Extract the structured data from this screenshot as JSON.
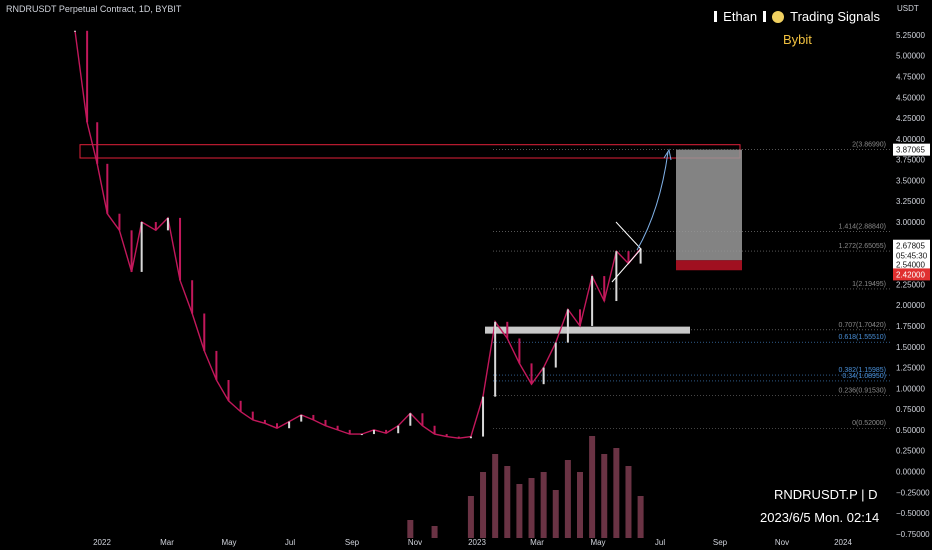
{
  "header": {
    "title": "RNDRUSDT Perpetual Contract, 1D, BYBIT",
    "brand_name": "Ethan",
    "brand_tag": "Trading Signals",
    "exchange": "Bybit",
    "axis_unit": "USDT"
  },
  "footer": {
    "symbol": "RNDRUSDT.P | D",
    "datetime": "2023/6/5 Mon. 02:14"
  },
  "colors": {
    "background": "#000000",
    "up": "#d9d9d9",
    "down": "#c2185b",
    "resistance": "#e0203a",
    "fib_line": "#8a8a8a",
    "fib_blue": "#4a90d9",
    "target_zone": "#9a9a9a",
    "stop_zone": "#a01020",
    "price_tag": "#e03030"
  },
  "chart_data": {
    "type": "line",
    "title": "RNDRUSDT Perpetual Contract, 1D, BYBIT",
    "ylabel": "USDT",
    "ylim": [
      -0.8,
      5.55
    ],
    "y_ticks": [
      "5.25000",
      "5.00000",
      "4.75000",
      "4.50000",
      "4.25000",
      "4.00000",
      "3.75000",
      "3.50000",
      "3.25000",
      "3.00000",
      "2.75000",
      "2.50000",
      "2.25000",
      "2.00000",
      "1.75000",
      "1.50000",
      "1.25000",
      "1.00000",
      "0.75000",
      "0.50000",
      "0.25000",
      "0.00000",
      "−0.25000",
      "−0.50000",
      "−0.75000"
    ],
    "x_ticks": [
      "2022",
      "Mar",
      "May",
      "Jul",
      "Sep",
      "Nov",
      "2023",
      "Mar",
      "May",
      "Jul",
      "Sep",
      "Nov",
      "2024"
    ],
    "series": [
      {
        "values": [
          [
            0,
            5.3
          ],
          [
            6,
            4.2
          ],
          [
            11,
            3.7
          ],
          [
            16,
            3.1
          ],
          [
            22,
            2.9
          ],
          [
            28,
            2.4
          ],
          [
            33,
            3.0
          ],
          [
            40,
            2.9
          ],
          [
            46,
            3.05
          ],
          [
            52,
            2.3
          ],
          [
            58,
            1.9
          ],
          [
            64,
            1.45
          ],
          [
            70,
            1.1
          ],
          [
            76,
            0.85
          ],
          [
            82,
            0.72
          ],
          [
            88,
            0.62
          ],
          [
            94,
            0.58
          ],
          [
            100,
            0.52
          ],
          [
            106,
            0.6
          ],
          [
            112,
            0.68
          ],
          [
            118,
            0.62
          ],
          [
            124,
            0.55
          ],
          [
            130,
            0.5
          ],
          [
            136,
            0.45
          ],
          [
            142,
            0.45
          ],
          [
            148,
            0.5
          ],
          [
            154,
            0.46
          ],
          [
            160,
            0.55
          ],
          [
            166,
            0.7
          ],
          [
            172,
            0.55
          ],
          [
            178,
            0.45
          ],
          [
            184,
            0.42
          ],
          [
            190,
            0.4
          ],
          [
            196,
            0.42
          ],
          [
            202,
            0.9
          ],
          [
            208,
            1.8
          ],
          [
            214,
            1.6
          ],
          [
            220,
            1.3
          ],
          [
            226,
            1.05
          ],
          [
            232,
            1.25
          ],
          [
            238,
            1.55
          ],
          [
            244,
            1.95
          ],
          [
            250,
            1.75
          ],
          [
            256,
            2.35
          ],
          [
            262,
            2.05
          ],
          [
            268,
            2.65
          ],
          [
            274,
            2.5
          ],
          [
            280,
            2.68
          ]
        ]
      }
    ],
    "volume": [
      [
        166,
        0.15
      ],
      [
        178,
        0.1
      ],
      [
        196,
        0.35
      ],
      [
        202,
        0.55
      ],
      [
        208,
        0.7
      ],
      [
        214,
        0.6
      ],
      [
        220,
        0.45
      ],
      [
        226,
        0.5
      ],
      [
        232,
        0.55
      ],
      [
        238,
        0.4
      ],
      [
        244,
        0.65
      ],
      [
        250,
        0.55
      ],
      [
        256,
        0.85
      ],
      [
        262,
        0.7
      ],
      [
        268,
        0.75
      ],
      [
        274,
        0.6
      ],
      [
        280,
        0.35
      ]
    ],
    "fib_levels": [
      {
        "ratio": "2",
        "price": 3.8699,
        "label": "2(3.86990)"
      },
      {
        "ratio": "1.414",
        "price": 2.8884,
        "label": "1.414(2.88840)"
      },
      {
        "ratio": "1.272",
        "price": 2.65055,
        "label": "1.272(2.65055)"
      },
      {
        "ratio": "1",
        "price": 2.19495,
        "label": "1(2.19495)"
      },
      {
        "ratio": "0.707",
        "price": 1.7042,
        "label": "0.707(1.70420)"
      },
      {
        "ratio": "0.618",
        "price": 1.5551,
        "label": "0.618(1.55510)"
      },
      {
        "ratio": "0.382",
        "price": 1.15985,
        "label": "0.382(1.15985)"
      },
      {
        "ratio": "0.34",
        "price": 1.0895,
        "label": "0.34(1.08950)"
      },
      {
        "ratio": "0.236",
        "price": 0.9153,
        "label": "0.236(0.91530)"
      },
      {
        "ratio": "0",
        "price": 0.52,
        "label": "0(0.52000)"
      }
    ],
    "resistance_zone": [
      3.77,
      3.93
    ],
    "support_band": 1.7,
    "target_zone": [
      2.54,
      3.87065
    ],
    "stop_zone": [
      2.42,
      2.54
    ],
    "price_tags": [
      {
        "value": "3.87065",
        "price": 3.87065,
        "style": "light"
      },
      {
        "value": "2.67805",
        "price": 2.715,
        "style": "light"
      },
      {
        "value": "05:45:30",
        "price": 2.6,
        "style": "light"
      },
      {
        "value": "2.54000",
        "price": 2.49,
        "style": "light"
      },
      {
        "value": "2.42000",
        "price": 2.37,
        "style": "red"
      }
    ],
    "grid": false,
    "legend": "none"
  }
}
